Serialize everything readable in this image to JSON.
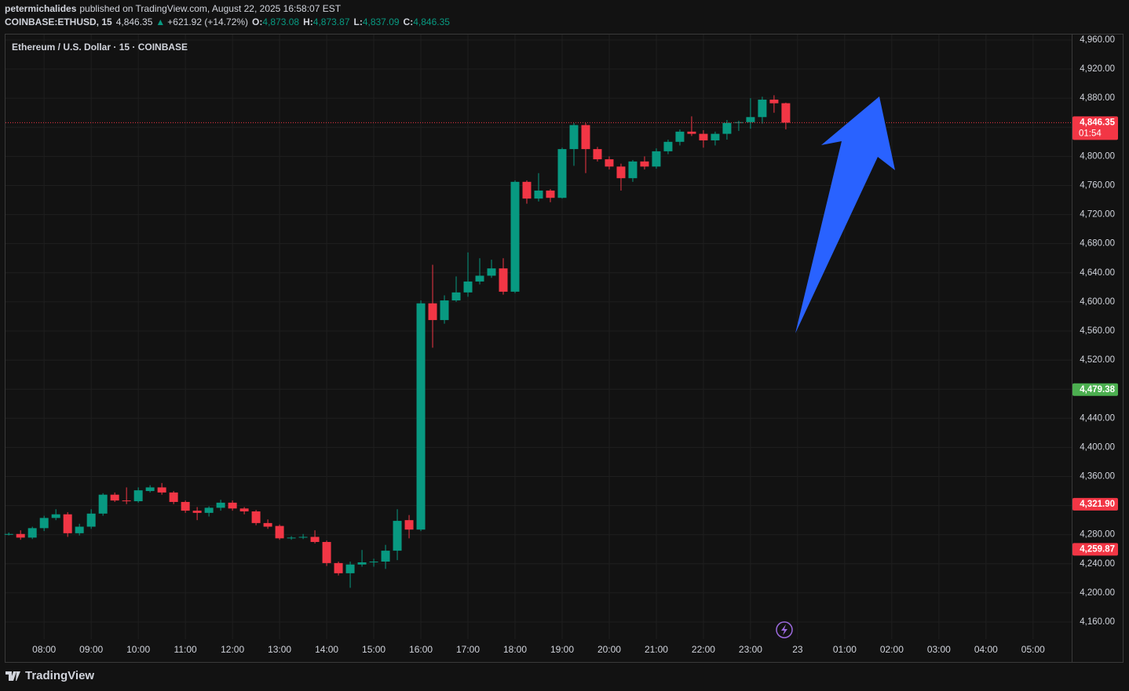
{
  "header": {
    "author": "petermichalides",
    "published": "published on TradingView.com, August 22, 2025 16:58:07 EST",
    "symbol": "COINBASE:ETHUSD, 15",
    "last": "4,846.35",
    "change_icon": "▲",
    "change": "+621.92 (+14.72%)",
    "ohlc": [
      {
        "label": "O:",
        "value": "4,873.08"
      },
      {
        "label": "H:",
        "value": "4,873.87"
      },
      {
        "label": "L:",
        "value": "4,837.09"
      },
      {
        "label": "C:",
        "value": "4,846.35"
      }
    ]
  },
  "chart_data": {
    "type": "candlestick",
    "title": "Ethereum / U.S. Dollar · 15 · COINBASE",
    "up_color": "#089981",
    "down_color": "#f23645",
    "grid": true,
    "x": [
      7.25,
      7.5,
      7.75,
      8,
      8.25,
      8.5,
      8.75,
      9,
      9.25,
      9.5,
      9.75,
      10,
      10.25,
      10.5,
      10.75,
      11,
      11.25,
      11.5,
      11.75,
      12,
      12.25,
      12.5,
      12.75,
      13,
      13.25,
      13.5,
      13.75,
      14,
      14.25,
      14.5,
      14.75,
      15,
      15.25,
      15.5,
      15.75,
      16,
      16.25,
      16.5,
      16.75,
      17,
      17.25,
      17.5,
      17.75,
      18,
      18.25,
      18.5,
      18.75,
      19,
      19.25,
      19.5,
      19.75,
      20,
      20.25,
      20.5,
      20.75,
      21,
      21.25,
      21.5,
      21.75,
      22,
      22.25,
      22.5,
      22.75,
      23,
      23.25,
      23.5,
      23.75
    ],
    "open": [
      4280,
      4281,
      4276,
      4289,
      4303,
      4308,
      4282,
      4291,
      4309,
      4335,
      4327,
      4326,
      4340,
      4345,
      4338,
      4325,
      4313,
      4310,
      4317,
      4324,
      4316,
      4312,
      4296,
      4292,
      4275,
      4276,
      4277,
      4270,
      4241,
      4227,
      4239,
      4242,
      4243,
      4258,
      4300,
      4287,
      4598,
      4575,
      4602,
      4613,
      4628,
      4636,
      4646,
      4614,
      4765,
      4742,
      4753,
      4743,
      4810,
      4843,
      4810,
      4796,
      4786,
      4770,
      4793,
      4786,
      4807,
      4820,
      4834,
      4831,
      4822,
      4831,
      4846,
      4847,
      4854,
      4878,
      4873.08
    ],
    "high": [
      4283,
      4286,
      4291,
      4306,
      4315,
      4311,
      4295,
      4315,
      4337,
      4338,
      4345,
      4345,
      4348,
      4351,
      4340,
      4327,
      4318,
      4319,
      4328,
      4327,
      4318,
      4314,
      4301,
      4294,
      4278,
      4281,
      4286,
      4272,
      4243,
      4243,
      4259,
      4247,
      4266,
      4315,
      4307,
      4602,
      4651,
      4609,
      4635,
      4668,
      4660,
      4658,
      4660,
      4767,
      4767,
      4777,
      4755,
      4812,
      4846,
      4846,
      4813,
      4800,
      4790,
      4795,
      4800,
      4811,
      4823,
      4837,
      4855,
      4836,
      4834,
      4850,
      4849,
      4880,
      4882,
      4884,
      4873.87
    ],
    "low": [
      4279,
      4273,
      4274,
      4285,
      4300,
      4277,
      4279,
      4288,
      4306,
      4325,
      4322,
      4324,
      4338,
      4335,
      4322,
      4310,
      4300,
      4305,
      4313,
      4313,
      4308,
      4293,
      4288,
      4273,
      4273,
      4274,
      4268,
      4237,
      4224,
      4207,
      4236,
      4236,
      4233,
      4245,
      4275,
      4285,
      4537,
      4570,
      4600,
      4607,
      4624,
      4633,
      4610,
      4612,
      4735,
      4738,
      4737,
      4742,
      4787,
      4777,
      4793,
      4782,
      4753,
      4765,
      4782,
      4783,
      4803,
      4815,
      4828,
      4812,
      4815,
      4823,
      4835,
      4838,
      4845,
      4860,
      4837.09
    ],
    "close": [
      4281,
      4276,
      4289,
      4303,
      4308,
      4282,
      4291,
      4309,
      4335,
      4327,
      4326,
      4341,
      4345,
      4338,
      4325,
      4313,
      4310,
      4317,
      4324,
      4316,
      4312,
      4296,
      4291,
      4275,
      4276,
      4277,
      4270,
      4241,
      4227,
      4239,
      4242,
      4243,
      4258,
      4299,
      4287,
      4598,
      4575,
      4602,
      4613,
      4628,
      4636,
      4646,
      4614,
      4765,
      4742,
      4753,
      4743,
      4810,
      4843,
      4810,
      4796,
      4786,
      4770,
      4793,
      4786,
      4807,
      4820,
      4834,
      4831,
      4822,
      4831,
      4846,
      4847,
      4854,
      4878,
      4873,
      4846.35
    ],
    "xlim": [
      7.18,
      29.82
    ],
    "ylim": [
      4136.3,
      4967.5
    ],
    "xticks": [
      {
        "value": 8,
        "label": "08:00"
      },
      {
        "value": 9,
        "label": "09:00"
      },
      {
        "value": 10,
        "label": "10:00"
      },
      {
        "value": 11,
        "label": "11:00"
      },
      {
        "value": 12,
        "label": "12:00"
      },
      {
        "value": 13,
        "label": "13:00"
      },
      {
        "value": 14,
        "label": "14:00"
      },
      {
        "value": 15,
        "label": "15:00"
      },
      {
        "value": 16,
        "label": "16:00"
      },
      {
        "value": 17,
        "label": "17:00"
      },
      {
        "value": 18,
        "label": "18:00"
      },
      {
        "value": 19,
        "label": "19:00"
      },
      {
        "value": 20,
        "label": "20:00"
      },
      {
        "value": 21,
        "label": "21:00"
      },
      {
        "value": 22,
        "label": "22:00"
      },
      {
        "value": 23,
        "label": "23:00"
      },
      {
        "value": 24,
        "label": "23"
      },
      {
        "value": 25,
        "label": "01:00"
      },
      {
        "value": 26,
        "label": "02:00"
      },
      {
        "value": 27,
        "label": "03:00"
      },
      {
        "value": 28,
        "label": "04:00"
      },
      {
        "value": 29,
        "label": "05:00"
      }
    ],
    "yticks": [
      {
        "value": 4960,
        "label": "4,960.00"
      },
      {
        "value": 4920,
        "label": "4,920.00"
      },
      {
        "value": 4880,
        "label": "4,880.00"
      },
      {
        "value": 4840,
        "label": "4,840.00"
      },
      {
        "value": 4800,
        "label": "4,800.00"
      },
      {
        "value": 4760,
        "label": "4,760.00"
      },
      {
        "value": 4720,
        "label": "4,720.00"
      },
      {
        "value": 4680,
        "label": "4,680.00"
      },
      {
        "value": 4640,
        "label": "4,640.00"
      },
      {
        "value": 4600,
        "label": "4,600.00"
      },
      {
        "value": 4560,
        "label": "4,560.00"
      },
      {
        "value": 4520,
        "label": "4,520.00"
      },
      {
        "value": 4480,
        "label": "4,480.00"
      },
      {
        "value": 4440,
        "label": "4,440.00"
      },
      {
        "value": 4400,
        "label": "4,400.00"
      },
      {
        "value": 4360,
        "label": "4,360.00"
      },
      {
        "value": 4320,
        "label": "4,320.00"
      },
      {
        "value": 4280,
        "label": "4,280.00"
      },
      {
        "value": 4240,
        "label": "4,240.00"
      },
      {
        "value": 4200,
        "label": "4,200.00"
      },
      {
        "value": 4160,
        "label": "4,160.00"
      }
    ],
    "price_labels": [
      {
        "value": 4846.35,
        "label": "4,846.35",
        "countdown": "01:54",
        "color": "#f23645",
        "line": true
      },
      {
        "value": 4479.38,
        "label": "4,479.38",
        "color": "#4caf50"
      },
      {
        "value": 4321.9,
        "label": "4,321.90",
        "color": "#f23645"
      },
      {
        "value": 4259.87,
        "label": "4,259.87",
        "color": "#f23645"
      }
    ]
  },
  "footer": {
    "brand": "TradingView"
  }
}
